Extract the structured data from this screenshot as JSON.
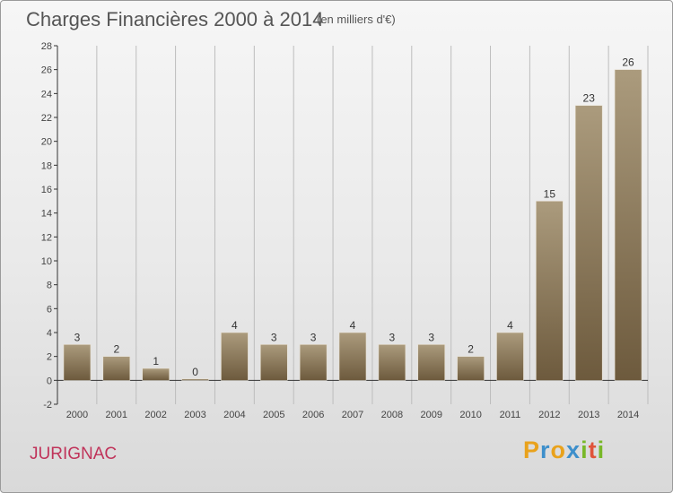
{
  "header": {
    "title": "Charges Financières 2000 à 2014",
    "subtitle": "(en milliers d'€)"
  },
  "footer": {
    "commune": "JURIGNAC",
    "logo_text": "Proxiti"
  },
  "colors": {
    "bar_top": "#ab9b7d",
    "bar_bottom": "#6d5a3d",
    "axis": "#333333",
    "grid": "#bdbdbd"
  },
  "chart_data": {
    "type": "bar",
    "title": "Charges Financières 2000 à 2014",
    "subtitle": "(en milliers d'€)",
    "categories": [
      "2000",
      "2001",
      "2002",
      "2003",
      "2004",
      "2005",
      "2006",
      "2007",
      "2008",
      "2009",
      "2010",
      "2011",
      "2012",
      "2013",
      "2014"
    ],
    "values": [
      3,
      2,
      1,
      0,
      4,
      3,
      3,
      4,
      3,
      3,
      2,
      4,
      15,
      23,
      26
    ],
    "ylim": [
      -2,
      28
    ],
    "yticks": [
      -2,
      0,
      2,
      4,
      6,
      8,
      10,
      12,
      14,
      16,
      18,
      20,
      22,
      24,
      26,
      28
    ],
    "grid": "vertical",
    "legend": "none"
  }
}
